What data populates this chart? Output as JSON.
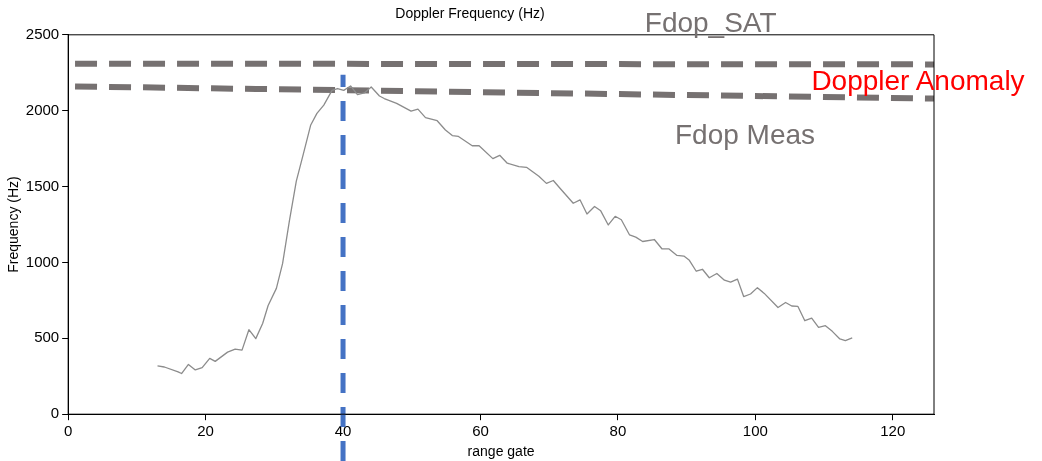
{
  "chart_data": {
    "type": "line",
    "title": "Doppler Frequency (Hz)",
    "xlabel": "range gate",
    "ylabel": "Frequency (Hz)",
    "xlim": [
      0,
      126
    ],
    "xticks": [
      0,
      20,
      40,
      60,
      80,
      100,
      120
    ],
    "ylim": [
      0,
      2500
    ],
    "yticks": [
      0,
      500,
      1000,
      1500,
      2000,
      2500
    ],
    "grid": false,
    "legend": false,
    "marker": "none",
    "series": [
      {
        "color": "#8c8c8c",
        "line_style": "solid",
        "x": [
          13,
          14,
          16,
          16.5,
          17.5,
          18.5,
          19.5,
          20.6,
          21.4,
          23.2,
          24.3,
          25.3,
          26.3,
          27.3,
          28.3,
          29.1,
          30.3,
          31.2,
          32.2,
          33.2,
          34.2,
          35.3,
          36.2,
          37.2,
          38.4,
          39.2,
          40.1,
          41.1,
          42.1,
          43.1,
          44.1,
          45.3,
          46,
          47.8,
          49.9,
          50.9,
          52,
          53.7,
          54.9,
          55.9,
          56.8,
          58.8,
          59.8,
          61.8,
          62.8,
          63.9,
          65.6,
          66.7,
          68.5,
          69.6,
          70.6,
          71.7,
          73.5,
          74.5,
          75.5,
          76.6,
          77.5,
          78.6,
          79.6,
          80.5,
          81.7,
          82.6,
          83.6,
          85.3,
          86.4,
          87.4,
          88.6,
          89.6,
          90.4,
          91.4,
          92.3,
          93.3,
          94.4,
          95.5,
          96.4,
          97.4,
          98.3,
          99.3,
          100.3,
          101.3,
          103.3,
          104.4,
          105.3,
          106.2,
          107.2,
          108.2,
          109.2,
          110.2,
          111.2,
          112.3,
          113.1,
          114.1
        ],
        "values": [
          318,
          311,
          279,
          268,
          328,
          292,
          307,
          368,
          348,
          409,
          429,
          422,
          557,
          498,
          598,
          716,
          829,
          992,
          1275,
          1536,
          1710,
          1906,
          1982,
          2037,
          2134,
          2146,
          2134,
          2163,
          2106,
          2117,
          2156,
          2097,
          2080,
          2048,
          1997,
          2010,
          1954,
          1934,
          1873,
          1836,
          1830,
          1769,
          1769,
          1684,
          1706,
          1654,
          1632,
          1627,
          1568,
          1521,
          1540,
          1482,
          1390,
          1412,
          1319,
          1369,
          1340,
          1247,
          1304,
          1281,
          1181,
          1167,
          1138,
          1151,
          1090,
          1090,
          1046,
          1042,
          1014,
          942,
          955,
          899,
          927,
          883,
          870,
          890,
          775,
          792,
          834,
          796,
          703,
          736,
          713,
          710,
          616,
          633,
          572,
          583,
          546,
          496,
          485,
          503
        ]
      },
      {
        "name": "Fdop_SAT",
        "color": "#767171",
        "line_style": "dashed",
        "x": [
          1,
          126
        ],
        "values": [
          2310,
          2305
        ]
      },
      {
        "name": "Fdop Meas",
        "color": "#767171",
        "line_style": "dashed",
        "x": [
          1,
          126
        ],
        "values": [
          2160,
          2080
        ]
      }
    ],
    "ref_lines": [
      {
        "axis": "x",
        "value": 40,
        "color": "#4472c4",
        "line_style": "dashed"
      }
    ],
    "annotations": [
      "Doppler Anomaly"
    ]
  }
}
